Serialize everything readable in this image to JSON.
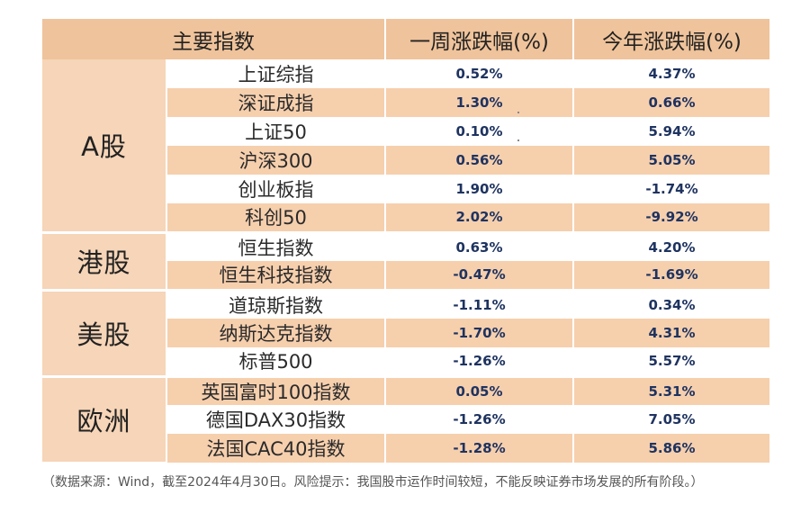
{
  "headers": [
    "主要指数",
    "一周涨跌幅(%)",
    "今年涨跌幅(%)"
  ],
  "groups": [
    {
      "name": "A股",
      "rows": [
        {
          "index": "上证综指",
          "week": "0.52%",
          "ytd": "4.37%"
        },
        {
          "index": "深证成指",
          "week": "1.30%",
          "ytd": "0.66%"
        },
        {
          "index": "上证50",
          "week": "0.10%",
          "ytd": "5.94%"
        },
        {
          "index": "沪深300",
          "week": "0.56%",
          "ytd": "5.05%"
        },
        {
          "index": "创业板指",
          "week": "1.90%",
          "ytd": "-1.74%"
        },
        {
          "index": "科创50",
          "week": "2.02%",
          "ytd": "-9.92%"
        }
      ]
    },
    {
      "name": "港股",
      "rows": [
        {
          "index": "恒生指数",
          "week": "0.63%",
          "ytd": "4.20%"
        },
        {
          "index": "恒生科技指数",
          "week": "-0.47%",
          "ytd": "-1.69%"
        }
      ]
    },
    {
      "name": "美股",
      "rows": [
        {
          "index": "道琼斯指数",
          "week": "-1.11%",
          "ytd": "0.34%"
        },
        {
          "index": "纳斯达克指数",
          "week": "-1.70%",
          "ytd": "4.31%"
        },
        {
          "index": "标普500",
          "week": "-1.26%",
          "ytd": "5.57%"
        }
      ]
    },
    {
      "name": "欧洲",
      "rows": [
        {
          "index": "英国富时100指数",
          "week": "0.05%",
          "ytd": "5.31%"
        },
        {
          "index": "德国DAX30指数",
          "week": "-1.26%",
          "ytd": "7.05%"
        },
        {
          "index": "法国CAC40指数",
          "week": "-1.28%",
          "ytd": "5.86%"
        }
      ]
    }
  ],
  "note": "（数据来源：Wind，截至2024年4月30日。风险提示：我国股市运作时间较短，不能反映证券市场发展的所有阶段。）"
}
